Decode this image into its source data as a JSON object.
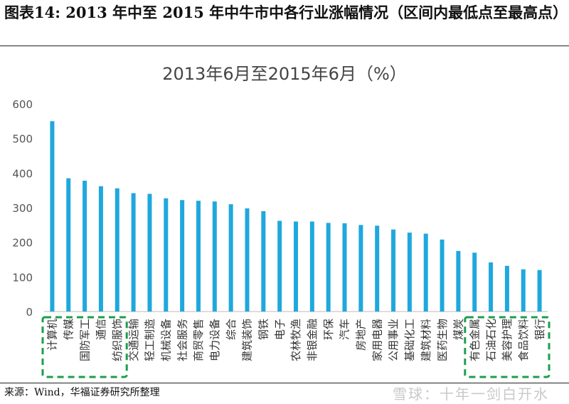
{
  "figure": {
    "title": "图表14:  2013 年中至 2015 年中牛市中各行业涨幅情况（区间内最低点至最高点）",
    "source": "来源：Wind，华福证券研究所整理",
    "watermark": "雪球：十年一剑白开水"
  },
  "chart_data": {
    "type": "bar",
    "title": "2013年6月至2015年6月（%）",
    "xlabel": "",
    "ylabel": "",
    "ylim": [
      0,
      600
    ],
    "yticks": [
      0,
      100,
      200,
      300,
      400,
      500,
      600
    ],
    "grid": false,
    "bar_color": "#1fa8dd",
    "highlight_color": "#1b9e4b",
    "categories": [
      "计算机",
      "传媒",
      "国防军工",
      "通信",
      "纺织服饰",
      "交通运输",
      "轻工制造",
      "机械设备",
      "社会服务",
      "商贸零售",
      "电力设备",
      "综合",
      "建筑装饰",
      "钢铁",
      "电子",
      "农林牧渔",
      "非银金融",
      "环保",
      "汽车",
      "房地产",
      "家用电器",
      "公用事业",
      "基础化工",
      "建筑材料",
      "医药生物",
      "煤炭",
      "有色金属",
      "石油石化",
      "美容护理",
      "食品饮料",
      "银行"
    ],
    "values": [
      550,
      385,
      378,
      362,
      356,
      342,
      340,
      327,
      322,
      320,
      318,
      310,
      298,
      290,
      262,
      260,
      260,
      256,
      255,
      250,
      248,
      237,
      228,
      225,
      208,
      175,
      170,
      142,
      132,
      122,
      120
    ],
    "highlight_groups": [
      {
        "from": "计算机",
        "to": "纺织服饰"
      },
      {
        "from": "有色金属",
        "to": "银行"
      }
    ]
  }
}
